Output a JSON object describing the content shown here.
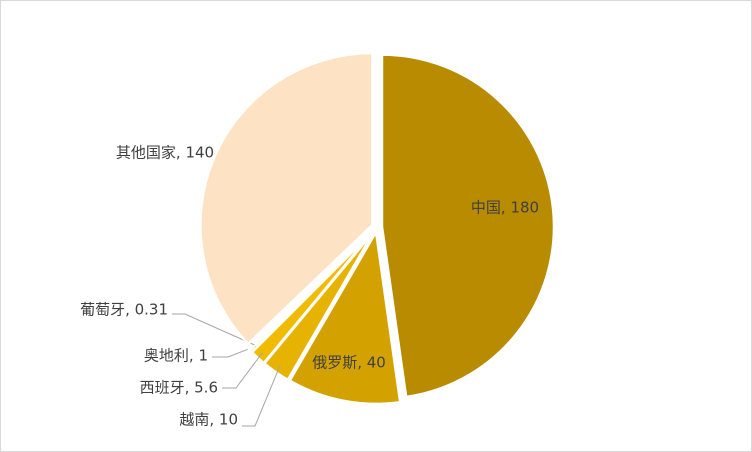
{
  "chart_data": {
    "type": "pie",
    "values": [
      180,
      40,
      10,
      5.6,
      1,
      0.31,
      140
    ],
    "value_labels": [
      "中国, 180",
      "俄罗斯, 40",
      "越南, 10",
      "西班牙, 5.6",
      "奥地利, 1",
      "葡萄牙, 0.31",
      "其他国家, 140"
    ],
    "colors": [
      "#b88b00",
      "#d4a200",
      "#e6b400",
      "#f0bb00",
      "#f7c81a",
      "#f9d060",
      "#fde3c4"
    ]
  }
}
